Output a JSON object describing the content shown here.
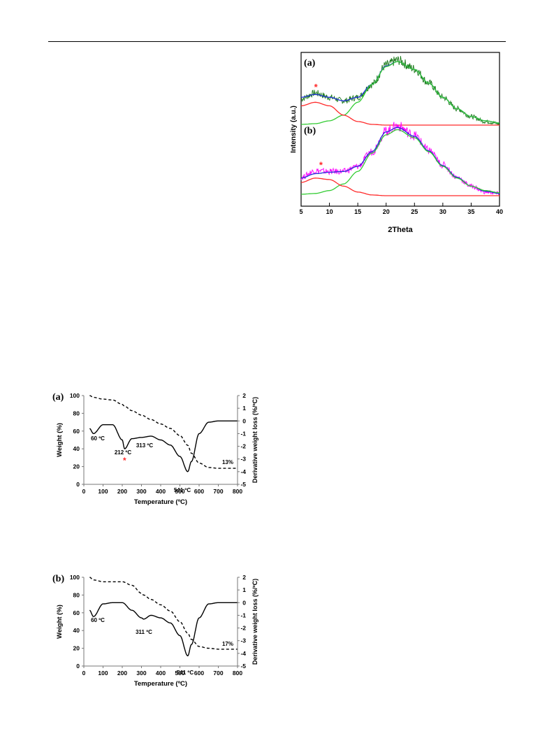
{
  "xrd": {
    "panels": [
      {
        "label": "(a)",
        "data_color": "#1a7a1a"
      },
      {
        "label": "(b)",
        "data_color": "#ff00ff"
      }
    ],
    "ylabel": "Intensity (a.u.)",
    "xlabel": "2Theta",
    "xticks": [
      "5",
      "10",
      "15",
      "20",
      "25",
      "30",
      "35",
      "40"
    ],
    "marker": "*",
    "colors": {
      "fit": "#1f2fd6",
      "low_peak": "#ff2a2a",
      "high_peak": "#33cc33",
      "marker": "#ff2a2a"
    }
  },
  "tga": {
    "panels": [
      {
        "label": "(a)",
        "annotations": [
          "60 ºC",
          "212 ºC",
          "313 ºC",
          "541 ºC",
          "13%"
        ],
        "marker": "*"
      },
      {
        "label": "(b)",
        "annotations": [
          "60 ºC",
          "311 ºC",
          "541 ºC",
          "17%"
        ]
      }
    ],
    "ylabel_left": "Weight (%)",
    "ylabel_right": "Derivative weight loss (%/ºC)",
    "xlabel": "Temperature (ºC)",
    "xticks": [
      "0",
      "100",
      "200",
      "300",
      "400",
      "500",
      "600",
      "700",
      "800"
    ],
    "yticks_left": [
      "0",
      "20",
      "40",
      "60",
      "80",
      "100"
    ],
    "yticks_right": [
      "-5",
      "-4",
      "-3",
      "-2",
      "-1",
      "0",
      "1",
      "2"
    ]
  },
  "chart_data": [
    {
      "type": "line",
      "panel": "(a)",
      "xlabel": "2Theta",
      "ylabel": "Intensity (a.u.)",
      "xlim": [
        5,
        40
      ],
      "x": [
        5,
        7.5,
        10,
        12.5,
        15,
        17.5,
        20,
        22,
        25,
        27.5,
        30,
        32.5,
        35,
        37.5,
        40
      ],
      "series": [
        {
          "values": [
            0.38,
            0.46,
            0.4,
            0.35,
            0.4,
            0.58,
            0.85,
            0.92,
            0.8,
            0.6,
            0.4,
            0.24,
            0.13,
            0.06,
            0.03
          ]
        },
        {
          "values": [
            0.4,
            0.44,
            0.4,
            0.35,
            0.4,
            0.58,
            0.84,
            0.9,
            0.79,
            0.6,
            0.4,
            0.24,
            0.13,
            0.07,
            0.04
          ]
        },
        {
          "values": [
            0.02,
            0.03,
            0.07,
            0.15,
            0.33,
            0.58,
            0.83,
            0.9,
            0.79,
            0.6,
            0.4,
            0.24,
            0.13,
            0.07,
            0.04
          ]
        },
        {
          "values": [
            0.28,
            0.33,
            0.28,
            0.15,
            0.06,
            0.02,
            0.01,
            0.01,
            0.01,
            0.01,
            0.01,
            0.01,
            0.01,
            0.01,
            0.01
          ]
        }
      ]
    },
    {
      "type": "line",
      "panel": "(b)",
      "xlabel": "2Theta",
      "ylabel": "Intensity (a.u.)",
      "xlim": [
        5,
        40
      ],
      "x": [
        5,
        7.5,
        10,
        12.5,
        15,
        17.5,
        20,
        22,
        25,
        27.5,
        30,
        32.5,
        35,
        37.5,
        40
      ],
      "series": [
        {
          "values": [
            0.25,
            0.34,
            0.33,
            0.33,
            0.4,
            0.6,
            0.88,
            0.95,
            0.82,
            0.62,
            0.42,
            0.25,
            0.13,
            0.05,
            0.03
          ]
        },
        {
          "values": [
            0.24,
            0.3,
            0.32,
            0.33,
            0.4,
            0.6,
            0.87,
            0.93,
            0.81,
            0.61,
            0.41,
            0.25,
            0.13,
            0.06,
            0.03
          ]
        },
        {
          "values": [
            0.02,
            0.03,
            0.07,
            0.16,
            0.33,
            0.58,
            0.83,
            0.9,
            0.79,
            0.6,
            0.4,
            0.24,
            0.13,
            0.07,
            0.04
          ]
        },
        {
          "values": [
            0.18,
            0.24,
            0.22,
            0.13,
            0.05,
            0.01,
            0.0,
            0.0,
            0.0,
            0.0,
            0.0,
            0.0,
            0.0,
            0.0,
            0.0
          ]
        }
      ]
    },
    {
      "type": "line",
      "panel": "(a)",
      "xlabel": "Temperature (ºC)",
      "ylabel": "Weight (%)",
      "ylabel_right": "Derivative weight loss (%/ºC)",
      "xlim": [
        0,
        800
      ],
      "ylim": [
        0,
        100
      ],
      "ylim_right": [
        -5,
        2
      ],
      "x": [
        30,
        50,
        100,
        150,
        200,
        212,
        250,
        300,
        350,
        400,
        450,
        500,
        541,
        560,
        600,
        650,
        700,
        750,
        800
      ],
      "series": [
        {
          "axis": "left",
          "style": "dashed",
          "values": [
            100,
            98,
            96,
            95,
            90,
            88,
            83,
            78,
            73,
            68,
            63,
            55,
            44,
            35,
            24,
            19,
            18,
            18,
            18
          ]
        },
        {
          "axis": "right",
          "style": "solid",
          "values": [
            -0.6,
            -1.0,
            -0.3,
            -0.3,
            -1.5,
            -2.2,
            -1.4,
            -1.3,
            -1.2,
            -1.5,
            -1.9,
            -2.8,
            -4.0,
            -3.2,
            -1.0,
            -0.1,
            0.0,
            0.0,
            0.0
          ]
        }
      ]
    },
    {
      "type": "line",
      "panel": "(b)",
      "xlabel": "Temperature (ºC)",
      "ylabel": "Weight (%)",
      "ylabel_right": "Derivative weight loss (%/ºC)",
      "xlim": [
        0,
        800
      ],
      "ylim": [
        0,
        100
      ],
      "ylim_right": [
        -5,
        2
      ],
      "x": [
        30,
        50,
        100,
        150,
        200,
        250,
        300,
        311,
        350,
        400,
        450,
        500,
        541,
        560,
        600,
        650,
        700,
        750,
        800
      ],
      "series": [
        {
          "axis": "left",
          "style": "dashed",
          "values": [
            100,
            97,
            95,
            95,
            95,
            91,
            82,
            80,
            75,
            69,
            62,
            50,
            37,
            30,
            22,
            20,
            19,
            19,
            19
          ]
        },
        {
          "axis": "right",
          "style": "solid",
          "values": [
            -0.6,
            -1.1,
            -0.1,
            0.0,
            0.0,
            -0.6,
            -1.2,
            -1.3,
            -1.0,
            -1.2,
            -1.6,
            -2.6,
            -4.2,
            -3.3,
            -1.2,
            -0.1,
            0.0,
            0.0,
            0.0
          ]
        }
      ]
    }
  ]
}
